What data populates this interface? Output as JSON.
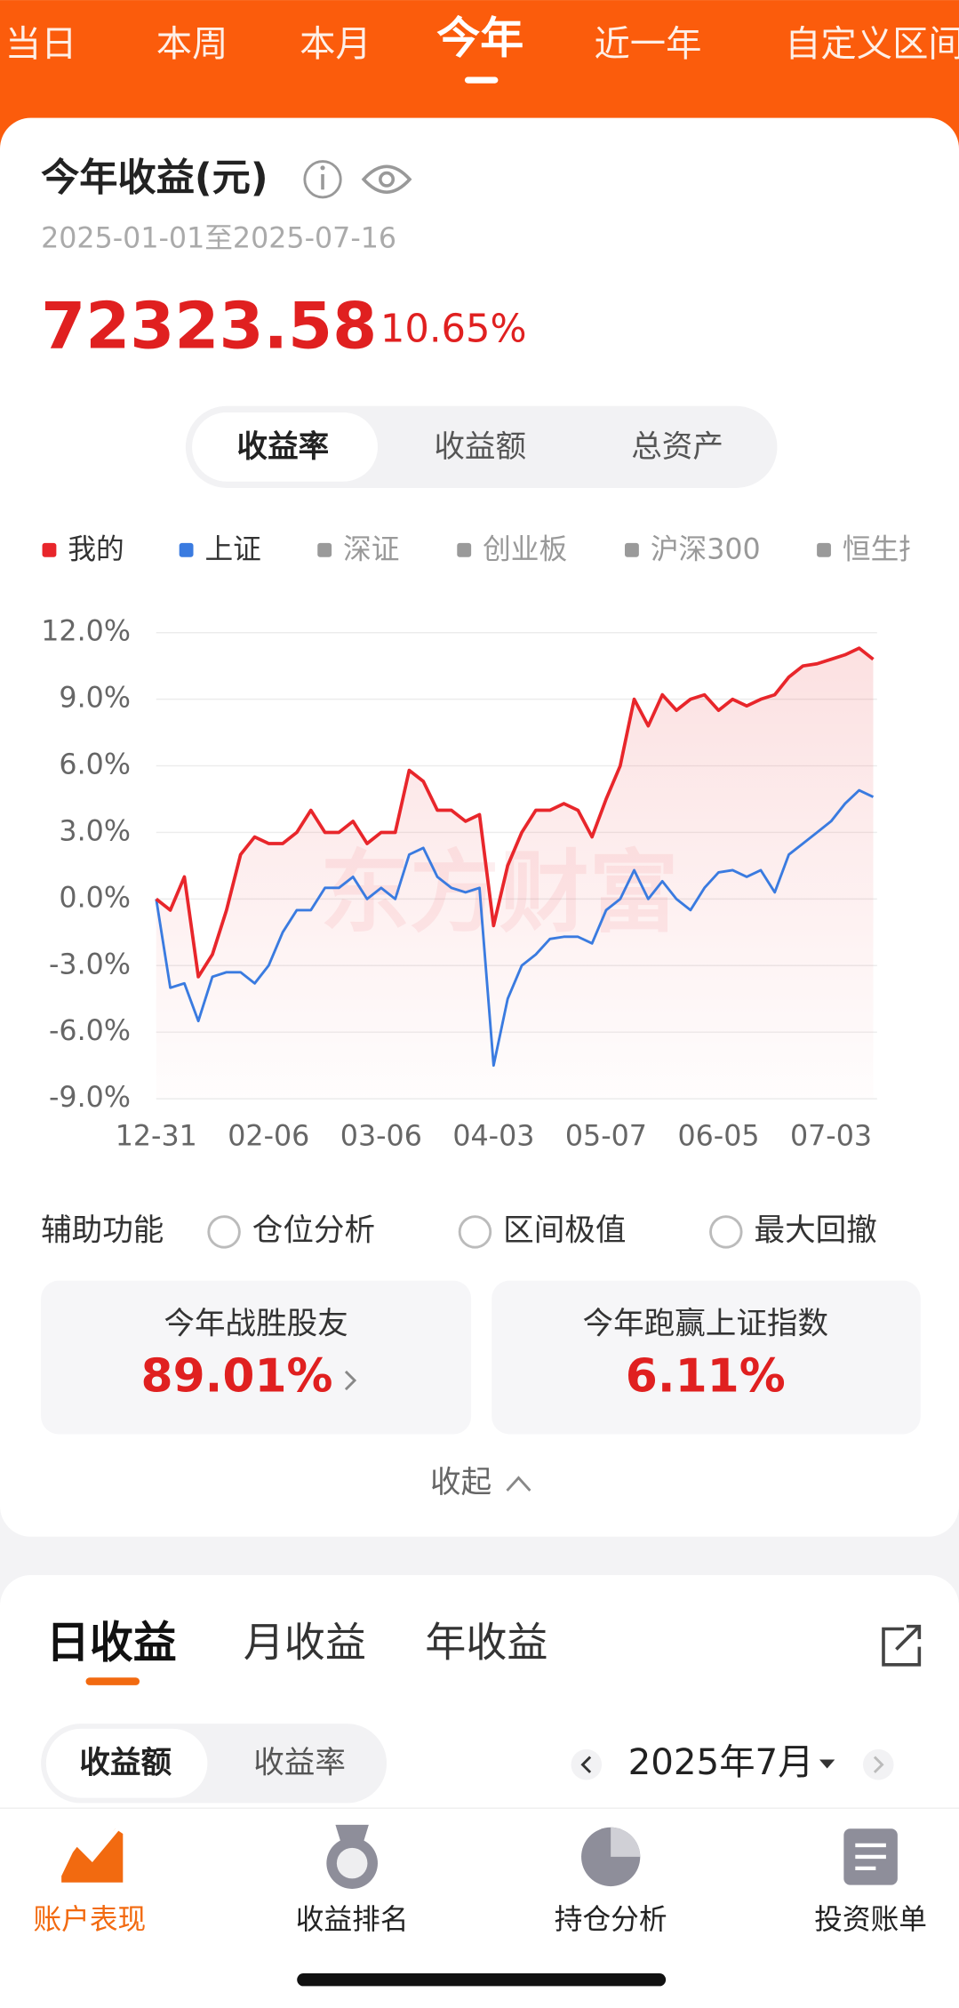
{
  "tabs": [
    "当日",
    "本周",
    "本月",
    "今年",
    "近一年",
    "自定义区间"
  ],
  "summary": {
    "title": "今年收益(元)",
    "date_range": "2025-01-01至2025-07-16",
    "amount": "72323.58",
    "rate": "10.65%"
  },
  "chart_switch": [
    "收益率",
    "收益额",
    "总资产"
  ],
  "chart_data": {
    "type": "line",
    "watermark": "东方财富",
    "categories": [
      "12-31",
      null,
      null,
      null,
      null,
      null,
      null,
      null,
      "02-06",
      null,
      null,
      null,
      null,
      null,
      null,
      null,
      "03-06",
      null,
      null,
      null,
      null,
      null,
      null,
      null,
      "04-03",
      null,
      null,
      null,
      null,
      null,
      null,
      null,
      "05-07",
      null,
      null,
      null,
      null,
      null,
      null,
      null,
      "06-05",
      null,
      null,
      null,
      null,
      null,
      null,
      null,
      "07-03",
      null,
      null,
      null
    ],
    "series": [
      {
        "name": "我的",
        "color": "#e8262b",
        "values": [
          0,
          -0.5,
          1.0,
          -3.5,
          -2.5,
          -0.5,
          2.0,
          2.8,
          2.5,
          2.5,
          3.0,
          4.0,
          3.0,
          3.0,
          3.5,
          2.5,
          3.0,
          3.0,
          5.8,
          5.3,
          4.0,
          4.0,
          3.5,
          3.8,
          -1.2,
          1.5,
          3.0,
          4.0,
          4.0,
          4.3,
          4.0,
          2.8,
          4.5,
          6.0,
          9.0,
          7.8,
          9.2,
          8.5,
          9.0,
          9.2,
          8.5,
          9.0,
          8.7,
          9.0,
          9.2,
          10.0,
          10.5,
          10.6,
          10.8,
          11.0,
          11.3,
          10.8
        ]
      },
      {
        "name": "上证",
        "color": "#3a7be0",
        "values": [
          0,
          -4.0,
          -3.8,
          -5.5,
          -3.5,
          -3.3,
          -3.3,
          -3.8,
          -3.0,
          -1.5,
          -0.5,
          -0.5,
          0.5,
          0.5,
          1.0,
          0.0,
          0.5,
          0.0,
          2.0,
          2.3,
          1.0,
          0.5,
          0.3,
          0.5,
          -7.5,
          -4.5,
          -3.0,
          -2.5,
          -1.8,
          -1.7,
          -1.7,
          -2.0,
          -0.5,
          0.0,
          1.3,
          0.0,
          0.8,
          0.0,
          -0.5,
          0.5,
          1.2,
          1.3,
          1.0,
          1.3,
          0.3,
          2.0,
          2.5,
          3.0,
          3.5,
          4.3,
          4.9,
          4.6
        ]
      }
    ],
    "legend_inactive": [
      "深证",
      "创业板",
      "沪深300",
      "恒生指数"
    ],
    "ylim": [
      -9,
      12
    ],
    "yticks": [
      {
        "value": -9,
        "label": "-9.0%"
      },
      {
        "value": -6,
        "label": "-6.0%"
      },
      {
        "value": -3,
        "label": "-3.0%"
      },
      {
        "value": 0,
        "label": "0.0%"
      },
      {
        "value": 3,
        "label": "3.0%"
      },
      {
        "value": 6,
        "label": "6.0%"
      },
      {
        "value": 9,
        "label": "9.0%"
      },
      {
        "value": 12,
        "label": "12.0%"
      }
    ],
    "grid": true
  },
  "tools": {
    "label": "辅助功能",
    "options": [
      "仓位分析",
      "区间极值",
      "最大回撤"
    ]
  },
  "stats": [
    {
      "label": "今年战胜股友",
      "value": "89.01%"
    },
    {
      "label": "今年跑赢上证指数",
      "value": "6.11%"
    }
  ],
  "collapse": "收起",
  "earnings_tabs": [
    "日收益",
    "月收益",
    "年收益"
  ],
  "earnings_switch": [
    "收益额",
    "收益率"
  ],
  "month": "2025年7月",
  "nav": [
    "账户表现",
    "收益排名",
    "持仓分析",
    "投资账单"
  ]
}
